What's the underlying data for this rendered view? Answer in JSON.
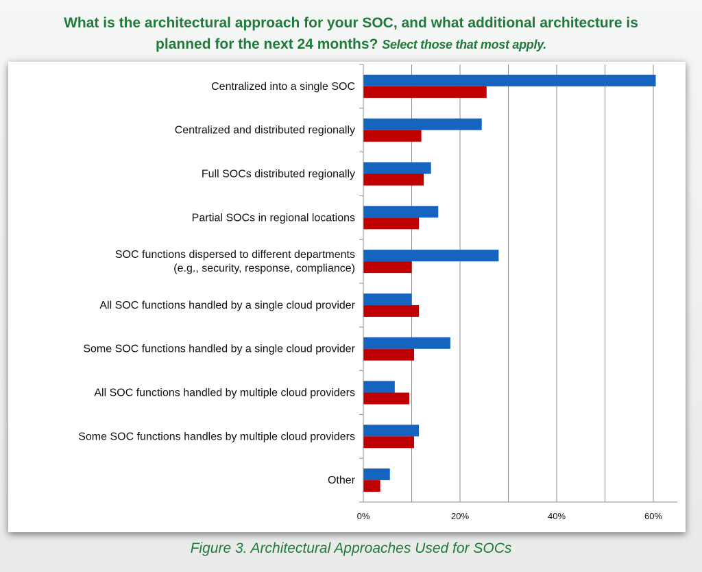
{
  "title": {
    "line1": "What is the architectural approach for your SOC, and what additional architecture is",
    "line2": "planned for the next 24 months?",
    "line2_italic": "Select those that most apply."
  },
  "caption": "Figure 3. Architectural Approaches Used for SOCs",
  "colors": {
    "title": "#1f7a3a",
    "series_blue": "#1565c0",
    "series_red": "#c00000",
    "grid": "#8c8c8c"
  },
  "chart_data": {
    "type": "bar",
    "orientation": "horizontal",
    "categories": [
      [
        "Centralized into a single SOC"
      ],
      [
        "Centralized and distributed regionally"
      ],
      [
        "Full SOCs distributed regionally"
      ],
      [
        "Partial SOCs in regional locations"
      ],
      [
        "SOC functions dispersed to different departments",
        "(e.g., security, response, compliance)"
      ],
      [
        "All SOC functions handled by a single cloud provider"
      ],
      [
        "Some SOC functions handled by a single cloud provider"
      ],
      [
        "All SOC functions handled by multiple cloud providers"
      ],
      [
        "Some SOC functions handles by multiple cloud providers"
      ],
      [
        "Other"
      ]
    ],
    "series": [
      {
        "color": "#1565c0",
        "values": [
          60.5,
          24.5,
          14,
          15.5,
          28,
          10,
          18,
          6.5,
          11.5,
          5.5
        ]
      },
      {
        "color": "#c00000",
        "values": [
          25.5,
          12,
          12.5,
          11.5,
          10,
          11.5,
          10.5,
          9.5,
          10.5,
          3.5
        ]
      }
    ],
    "xlim": [
      0,
      65
    ],
    "xticks": [
      0,
      20,
      40,
      60
    ],
    "xtick_labels": [
      "0%",
      "20%",
      "40%",
      "60%"
    ],
    "grid_major": true,
    "legend": "none"
  }
}
